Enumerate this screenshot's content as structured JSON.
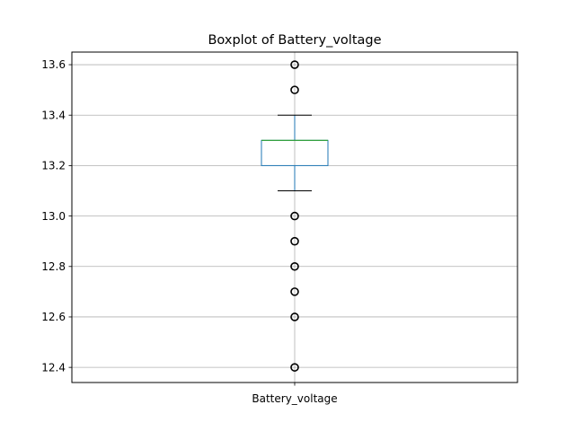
{
  "chart_data": {
    "type": "boxplot",
    "title": "Boxplot of Battery_voltage",
    "xlabel": "",
    "ylabel": "",
    "categories": [
      "Battery_voltage"
    ],
    "ylim": [
      12.34,
      13.65
    ],
    "yticks": [
      12.4,
      12.6,
      12.8,
      13.0,
      13.2,
      13.4,
      13.6
    ],
    "ytick_labels": [
      "12.4",
      "12.6",
      "12.8",
      "13.0",
      "13.2",
      "13.4",
      "13.6"
    ],
    "grid": true,
    "series": [
      {
        "whisker_low": 13.1,
        "q1": 13.2,
        "median": 13.3,
        "q3": 13.3,
        "whisker_high": 13.4,
        "outliers": [
          13.6,
          13.5,
          13.0,
          12.9,
          12.8,
          12.7,
          12.6,
          12.4
        ]
      }
    ],
    "colors": {
      "box": "#1f77b4",
      "median": "#2ca02c",
      "whisker": "#1f77b4",
      "cap": "#000000",
      "outlier": "#000000",
      "grid": "#b0b0b0"
    }
  }
}
